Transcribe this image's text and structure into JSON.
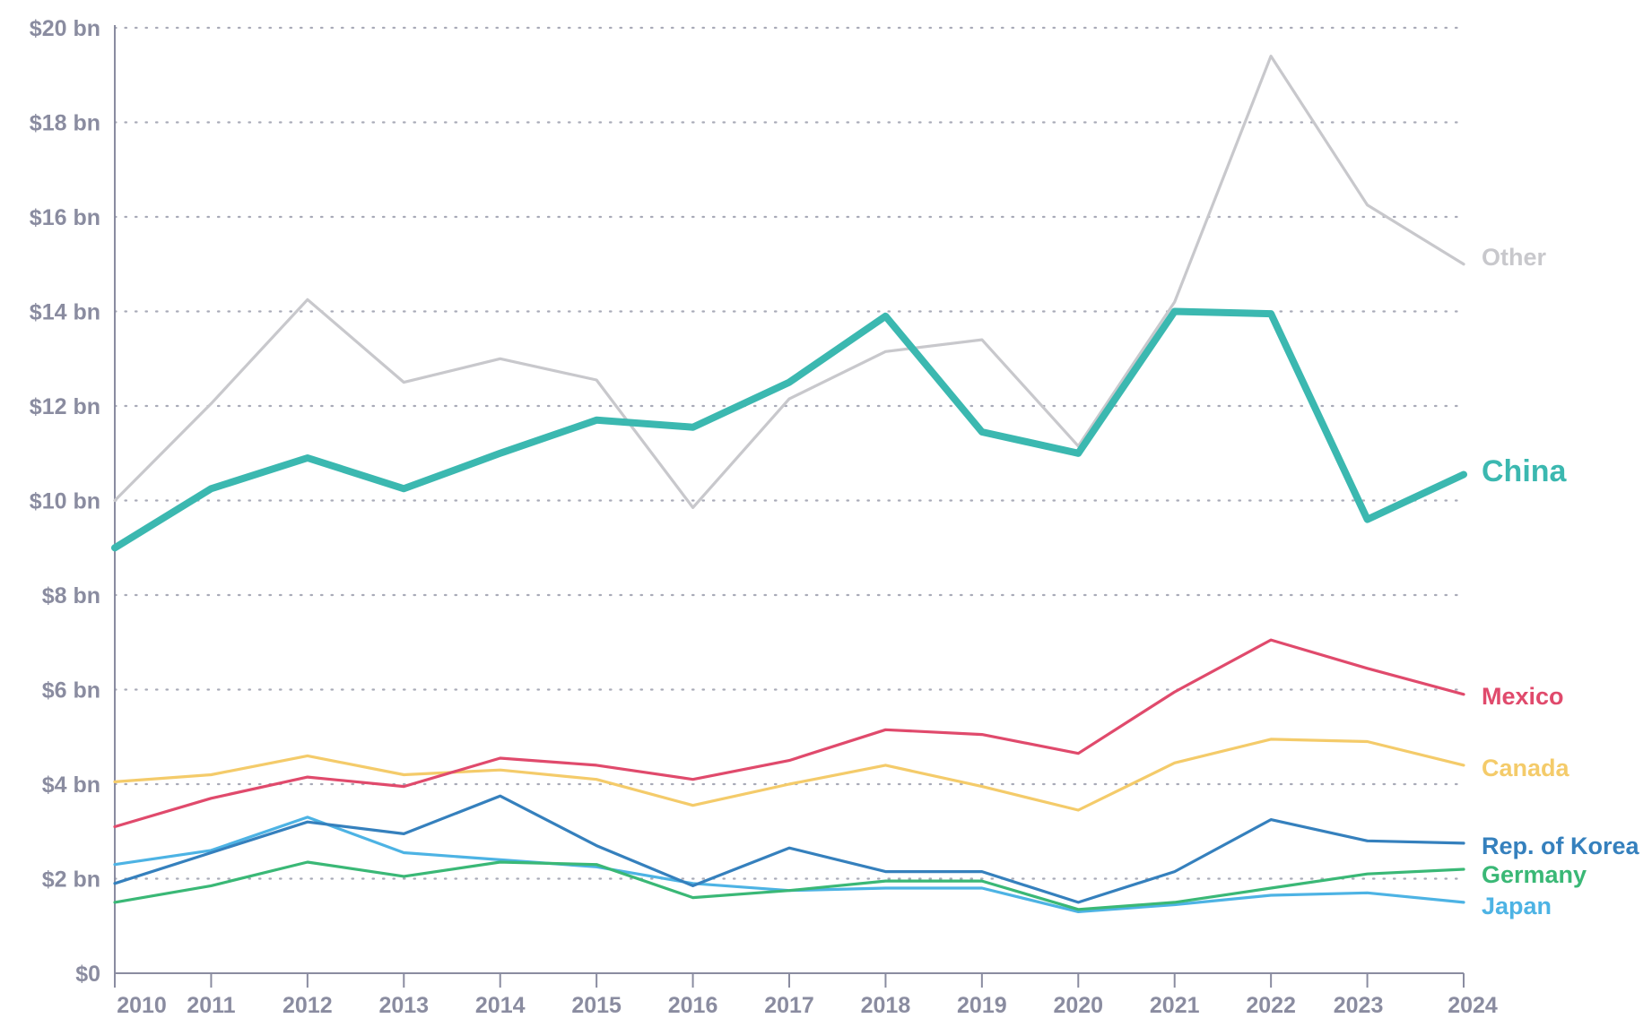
{
  "chart_data": {
    "type": "line",
    "title": "",
    "xlabel": "",
    "ylabel": "",
    "x": [
      2010,
      2011,
      2012,
      2013,
      2014,
      2015,
      2016,
      2017,
      2018,
      2019,
      2020,
      2021,
      2022,
      2023,
      2024
    ],
    "x_tick_labels": [
      "2010",
      "2011",
      "2012",
      "2013",
      "2014",
      "2015",
      "2016",
      "2017",
      "2018",
      "2019",
      "2020",
      "2021",
      "2022",
      "2023",
      "2024"
    ],
    "ylim": [
      0,
      20
    ],
    "y_ticks": [
      0,
      2,
      4,
      6,
      8,
      10,
      12,
      14,
      16,
      18,
      20
    ],
    "y_tick_labels": [
      "$0",
      "$2 bn",
      "$4 bn",
      "$6 bn",
      "$8 bn",
      "$10 bn",
      "$12 bn",
      "$14 bn",
      "$16 bn",
      "$18 bn",
      "$20 bn"
    ],
    "grid": true,
    "legend": "direct labels at right end of lines",
    "series": [
      {
        "name": "Other",
        "color": "#c8c8cc",
        "emphasis": "normal",
        "values": [
          10.0,
          12.05,
          14.25,
          12.5,
          13.0,
          12.55,
          9.85,
          12.15,
          13.15,
          13.4,
          11.15,
          14.2,
          19.4,
          16.25,
          15.0
        ]
      },
      {
        "name": "China",
        "color": "#3bb8b0",
        "emphasis": "bold",
        "values": [
          9.0,
          10.25,
          10.9,
          10.25,
          11.0,
          11.7,
          11.55,
          12.5,
          13.9,
          11.45,
          11.0,
          14.0,
          13.95,
          9.6,
          10.55
        ]
      },
      {
        "name": "Mexico",
        "color": "#e04a6c",
        "emphasis": "normal",
        "values": [
          3.1,
          3.7,
          4.15,
          3.95,
          4.55,
          4.4,
          4.1,
          4.5,
          5.15,
          5.05,
          4.65,
          5.95,
          7.05,
          6.45,
          5.9
        ]
      },
      {
        "name": "Canada",
        "color": "#f4cb6a",
        "emphasis": "normal",
        "values": [
          4.05,
          4.2,
          4.6,
          4.2,
          4.3,
          4.1,
          3.55,
          4.0,
          4.4,
          3.95,
          3.45,
          4.45,
          4.95,
          4.9,
          4.4
        ]
      },
      {
        "name": "Rep. of Korea",
        "color": "#3580bd",
        "emphasis": "normal",
        "values": [
          1.9,
          2.55,
          3.2,
          2.95,
          3.75,
          2.7,
          1.85,
          2.65,
          2.15,
          2.15,
          1.5,
          2.15,
          3.25,
          2.8,
          2.75
        ]
      },
      {
        "name": "Germany",
        "color": "#3ab876",
        "emphasis": "normal",
        "values": [
          1.5,
          1.85,
          2.35,
          2.05,
          2.35,
          2.3,
          1.6,
          1.75,
          1.95,
          1.95,
          1.35,
          1.5,
          1.8,
          2.1,
          2.2
        ]
      },
      {
        "name": "Japan",
        "color": "#4db3e4",
        "emphasis": "normal",
        "values": [
          2.3,
          2.6,
          3.3,
          2.55,
          2.4,
          2.25,
          1.9,
          1.75,
          1.8,
          1.8,
          1.3,
          1.45,
          1.65,
          1.7,
          1.5
        ]
      }
    ]
  }
}
